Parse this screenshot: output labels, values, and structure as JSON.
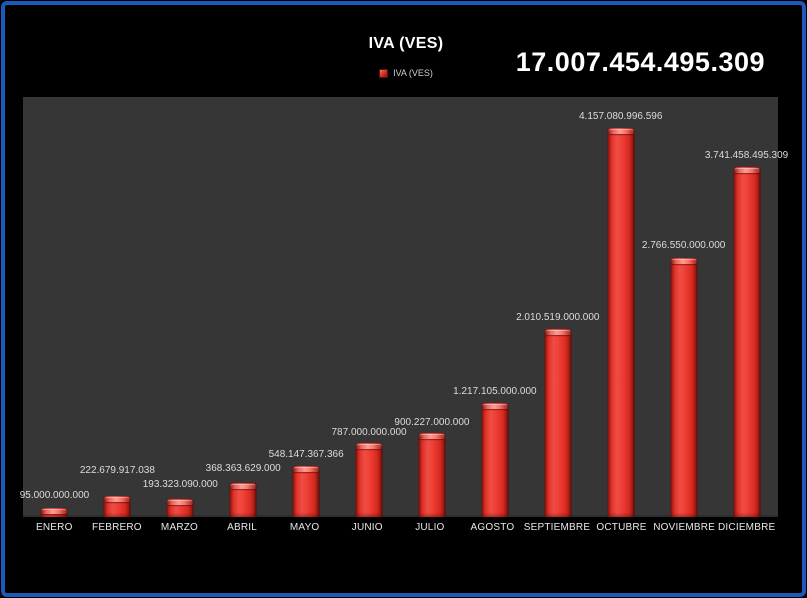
{
  "title": "IVA (VES)",
  "legend": {
    "label": "IVA (VES)",
    "marker_color": "#e0332a"
  },
  "total": "17.007.454.495.309",
  "colors": {
    "frame_border": "#1b5ab8",
    "background": "#000000",
    "plot_background": "#363636",
    "bar_red": "#e8352c",
    "bar_highlight": "#f89d95",
    "label_text": "#dcdcdc",
    "title_text": "#ffffff"
  },
  "chart_data": {
    "type": "bar",
    "title": "IVA (VES)",
    "series_name": "IVA (VES)",
    "categories": [
      "ENERO",
      "FEBRERO",
      "MARZO",
      "ABRIL",
      "MAYO",
      "JUNIO",
      "JULIO",
      "AGOSTO",
      "SEPTIEMBRE",
      "OCTUBRE",
      "NOVIEMBRE",
      "DICIEMBRE"
    ],
    "values": [
      95000000000,
      222679917038,
      193323090000,
      368363629000,
      548147367366,
      787000000000,
      900227000000,
      1217105000000,
      2010519000000,
      4157080996596,
      2766550000000,
      3741458495309
    ],
    "value_labels": [
      "95.000.000.000",
      "222.679.917.038",
      "193.323.090.000",
      "368.363.629.000",
      "548.147.367.366",
      "787.000.000.000",
      "900.227.000.000",
      "1.217.105.000.000",
      "2.010.519.000.000",
      "4.157.080.996.596",
      "2.766.550.000.000",
      "3.741.458.495.309"
    ],
    "total_label": "17.007.454.495.309",
    "xlabel": "",
    "ylabel": "",
    "ylim": [
      0,
      4490000000000
    ],
    "grid": false,
    "legend_position": "top-center",
    "label_offsets": [
      7,
      20,
      9,
      9,
      6,
      5,
      5,
      6,
      6,
      6,
      7,
      6
    ]
  }
}
